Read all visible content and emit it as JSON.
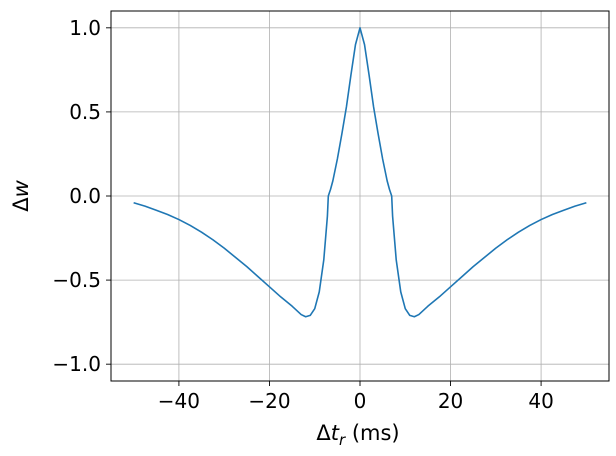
{
  "chart_data": {
    "type": "line",
    "title": "",
    "xlabel": "Δt_r (ms)",
    "xlabel_parts": {
      "delta": "Δ",
      "var": "t",
      "sub": "r",
      "unit": " (ms)"
    },
    "ylabel": "Δw",
    "ylabel_parts": {
      "delta": "Δ",
      "var": "w"
    },
    "xlim": [
      -55,
      55
    ],
    "ylim": [
      -1.1,
      1.1
    ],
    "xticks": [
      -40,
      -20,
      0,
      20,
      40
    ],
    "xtick_labels": [
      "−40",
      "−20",
      "0",
      "20",
      "40"
    ],
    "yticks": [
      -1.0,
      -0.5,
      0.0,
      0.5,
      1.0
    ],
    "ytick_labels": [
      "−1.0",
      "−0.5",
      "0.0",
      "0.5",
      "1.0"
    ],
    "grid": true,
    "colors": {
      "line": "#1f77b4",
      "grid": "#b0b0b0"
    },
    "series": [
      {
        "x": [
          -50,
          -47.5,
          -45,
          -42.5,
          -40,
          -37.5,
          -35,
          -32.5,
          -30,
          -27.5,
          -25,
          -22.5,
          -20,
          -17.5,
          -15,
          -13,
          -12,
          -11,
          -10,
          -9,
          -8,
          -7.2,
          -7,
          -6.5,
          -6,
          -5,
          -4,
          -3,
          -2,
          -1,
          0,
          1,
          2,
          3,
          4,
          5,
          6,
          6.5,
          7,
          7.2,
          8,
          9,
          10,
          11,
          12,
          13,
          15,
          17.5,
          20,
          22.5,
          25,
          27.5,
          30,
          32.5,
          35,
          37.5,
          40,
          42.5,
          45,
          47.5,
          50
        ],
        "y": [
          -0.04,
          -0.06,
          -0.085,
          -0.11,
          -0.14,
          -0.175,
          -0.215,
          -0.26,
          -0.31,
          -0.365,
          -0.42,
          -0.48,
          -0.54,
          -0.6,
          -0.655,
          -0.705,
          -0.718,
          -0.71,
          -0.67,
          -0.57,
          -0.38,
          -0.12,
          0.0,
          0.04,
          0.09,
          0.22,
          0.37,
          0.53,
          0.72,
          0.9,
          1.0,
          0.9,
          0.72,
          0.53,
          0.37,
          0.22,
          0.09,
          0.04,
          0.0,
          -0.12,
          -0.38,
          -0.57,
          -0.67,
          -0.71,
          -0.718,
          -0.705,
          -0.655,
          -0.6,
          -0.54,
          -0.48,
          -0.42,
          -0.365,
          -0.31,
          -0.26,
          -0.215,
          -0.175,
          -0.14,
          -0.11,
          -0.085,
          -0.06,
          -0.04
        ]
      }
    ]
  }
}
